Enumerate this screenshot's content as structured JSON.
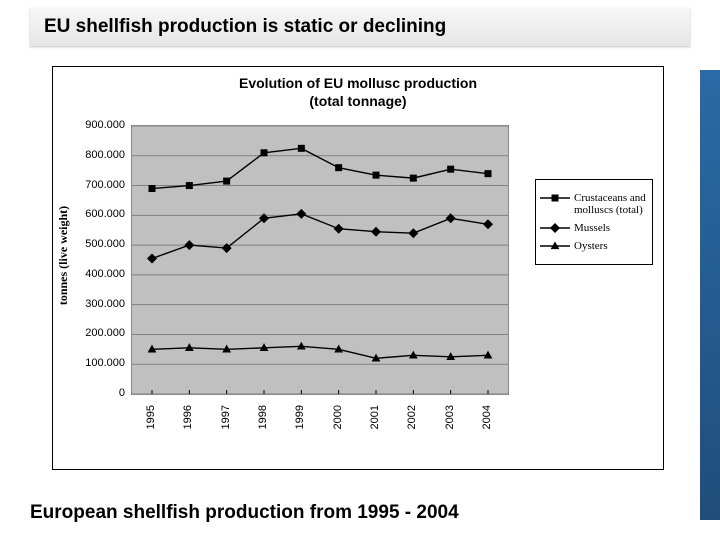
{
  "slide": {
    "title": "EU shellfish production is static or declining",
    "caption": "European shellfish production from 1995 - 2004",
    "title_fontsize": 19,
    "caption_fontsize": 19
  },
  "chart": {
    "type": "line",
    "title_line1": "Evolution of EU mollusc production",
    "title_line2": "(total tonnage)",
    "title_fontsize": 14,
    "ylabel": "tonnes (live weight)",
    "ylabel_fontsize": 12,
    "background_color": "#ffffff",
    "plot_background": "#c0c0c0",
    "grid_color": "#808080",
    "ylim": [
      0,
      900000
    ],
    "ytick_step": 100000,
    "ytick_labels": [
      "0",
      "100.000",
      "200.000",
      "300.000",
      "400.000",
      "500.000",
      "600.000",
      "700.000",
      "800.000",
      "900.000"
    ],
    "tick_fontsize": 11,
    "categories": [
      "1995",
      "1996",
      "1997",
      "1998",
      "1999",
      "2000",
      "2001",
      "2002",
      "2003",
      "2004"
    ],
    "line_color": "#000000",
    "line_width": 1.4,
    "marker_size": 7,
    "series": [
      {
        "name": "Crustaceans and molluscs (total)",
        "marker": "square",
        "values": [
          690000,
          700000,
          715000,
          810000,
          825000,
          760000,
          735000,
          725000,
          755000,
          740000
        ]
      },
      {
        "name": "Mussels",
        "marker": "diamond",
        "values": [
          455000,
          500000,
          490000,
          590000,
          605000,
          555000,
          545000,
          540000,
          590000,
          570000
        ]
      },
      {
        "name": "Oysters",
        "marker": "triangle",
        "values": [
          150000,
          155000,
          150000,
          155000,
          160000,
          150000,
          120000,
          130000,
          125000,
          130000
        ]
      }
    ],
    "legend": {
      "border_color": "#000000",
      "background": "#ffffff",
      "label_fontsize": 11,
      "symbol_line_length": 30
    }
  }
}
